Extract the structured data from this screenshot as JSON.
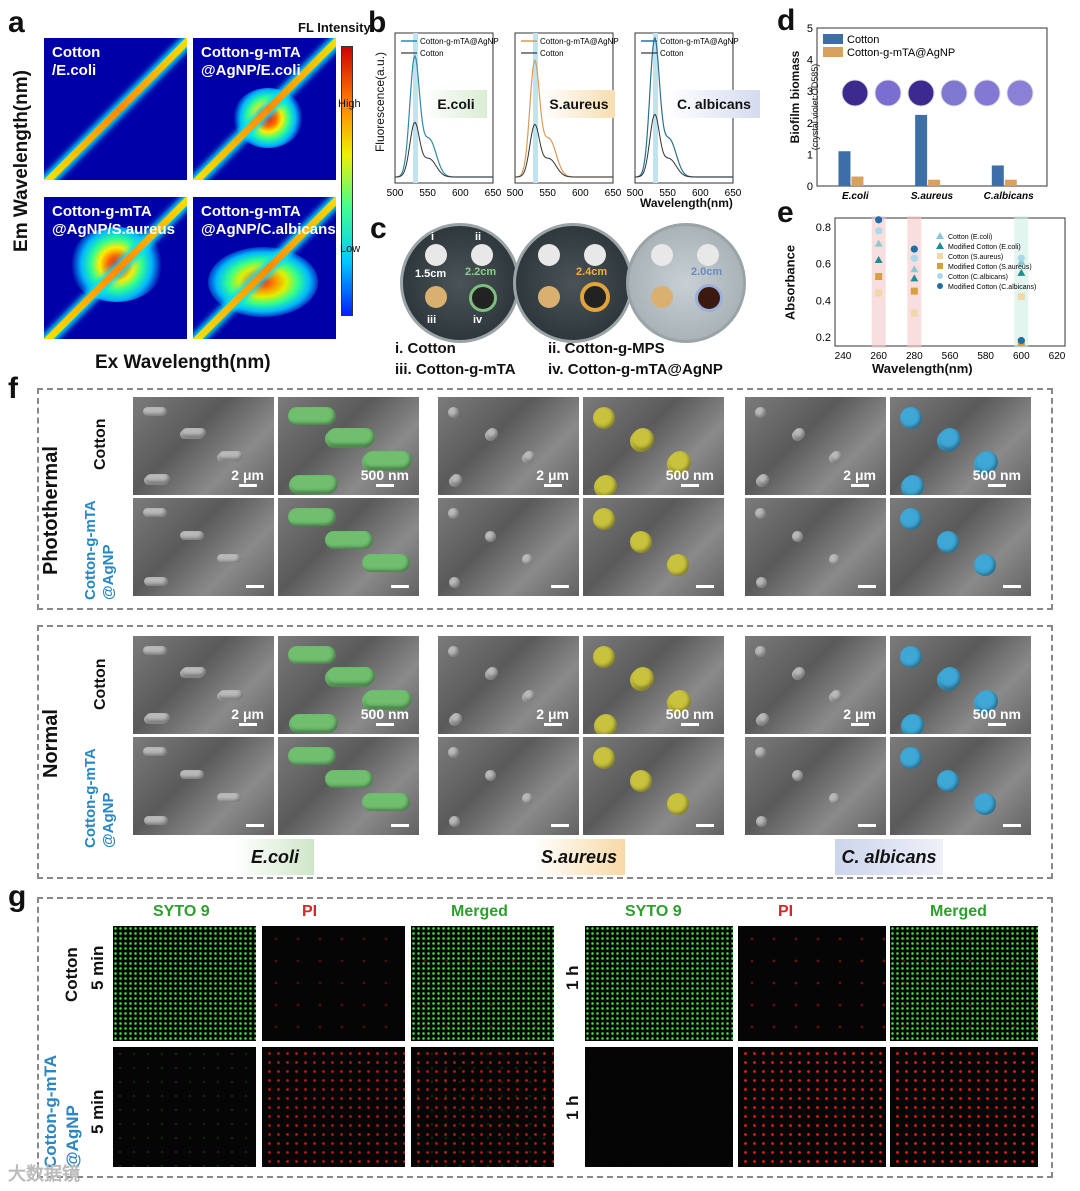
{
  "panel_letters": {
    "a": "a",
    "b": "b",
    "c": "c",
    "d": "d",
    "e": "e",
    "f": "f",
    "g": "g"
  },
  "panel_a": {
    "tiles": [
      "Cotton\n/E.coli",
      "Cotton-g-mTA\n@AgNP/E.coli",
      "Cotton-g-mTA\n@AgNP/S.aureus",
      "Cotton-g-mTA\n@AgNP/C.albicans"
    ],
    "colorbar_title": "FL Intensity",
    "colorbar_high": "High",
    "colorbar_low": "Low",
    "ylabel": "Em Wavelength(nm)",
    "xlabel": "Ex Wavelength(nm)"
  },
  "panel_b": {
    "ylabel": "Fluorescence(a.u.)",
    "xlabel": "Wavelength(nm)",
    "ticks": [
      "500",
      "550",
      "600",
      "650"
    ],
    "legend": [
      "Cotton-g-mTA@AgNP",
      "Cotton"
    ],
    "organisms": [
      "E.coli",
      "S.aureus",
      "C. albicans"
    ]
  },
  "panel_c": {
    "disk_labels": [
      "i",
      "ii",
      "iii",
      "iv"
    ],
    "zones": [
      "1.5cm",
      "2.2cm",
      "2.4cm",
      "2.0cm"
    ],
    "captions": [
      "i. Cotton",
      "ii. Cotton-g-MPS",
      "iii. Cotton-g-mTA",
      "iv. Cotton-g-mTA@AgNP"
    ]
  },
  "panel_f": {
    "groups": [
      "Photothermal",
      "Normal"
    ],
    "row_cotton": "Cotton",
    "row_treated": "Cotton-g-mTA\n@AgNP",
    "scales": [
      "2 μm",
      "500 nm"
    ],
    "organisms": [
      "E.coli",
      "S.aureus",
      "C. albicans"
    ]
  },
  "panel_g": {
    "channels": [
      "SYTO 9",
      "PI",
      "Merged"
    ],
    "times": [
      "5 min",
      "1 h"
    ],
    "row_cotton": "Cotton",
    "row_treated": "Cotton-g-mTA\n@AgNP"
  },
  "watermark": "大数据镜",
  "chart_data": [
    {
      "type": "bar",
      "title": "",
      "ylabel": "Biofilm biomass",
      "ylabel2": "(crystal violet:OD585)",
      "categories": [
        "E.coli",
        "S.aureus",
        "C.albicans"
      ],
      "ylim": [
        0,
        5
      ],
      "yticks": [
        "0",
        "1",
        "2",
        "3",
        "4",
        "5"
      ],
      "series": [
        {
          "name": "Cotton",
          "values": [
            1.1,
            2.25,
            0.65
          ],
          "color": "#3d6ea8"
        },
        {
          "name": "Cotton-g-mTA@AgNP",
          "values": [
            0.3,
            0.2,
            0.2
          ],
          "color": "#d9a15e"
        }
      ],
      "legend": "top-right"
    },
    {
      "type": "scatter",
      "title": "",
      "xlabel": "Wavelength(nm)",
      "ylabel": "Absorbance",
      "xticks": [
        "240",
        "260",
        "280",
        "560",
        "580",
        "600",
        "620"
      ],
      "yticks": [
        "0.2",
        "0.4",
        "0.6",
        "0.8"
      ],
      "ylim": [
        0.15,
        0.85
      ],
      "series": [
        {
          "name": "Cotton (E.coli)",
          "x": [
            260,
            280,
            600
          ],
          "y": [
            0.71,
            0.57,
            0.61
          ],
          "color": "#8ec7d4",
          "marker": "triangle"
        },
        {
          "name": "Modified Cotton (E.coli)",
          "x": [
            260,
            280,
            600
          ],
          "y": [
            0.62,
            0.52,
            0.55
          ],
          "color": "#1f8e93",
          "marker": "triangle"
        },
        {
          "name": "Cotton (S.aureus)",
          "x": [
            260,
            280,
            600
          ],
          "y": [
            0.44,
            0.33,
            0.42
          ],
          "color": "#f3d7a8",
          "marker": "square"
        },
        {
          "name": "Modified Cotton (S.aureus)",
          "x": [
            260,
            280,
            600
          ],
          "y": [
            0.53,
            0.45,
            0.17
          ],
          "color": "#d6a040",
          "marker": "square"
        },
        {
          "name": "Cotton (C.albicans)",
          "x": [
            260,
            280,
            600
          ],
          "y": [
            0.78,
            0.63,
            0.63
          ],
          "color": "#a9d9ea",
          "marker": "circle"
        },
        {
          "name": "Modified Cotton (C.albicans)",
          "x": [
            260,
            280,
            600
          ],
          "y": [
            0.84,
            0.68,
            0.18
          ],
          "color": "#1f6fa6",
          "marker": "circle"
        }
      ]
    }
  ]
}
